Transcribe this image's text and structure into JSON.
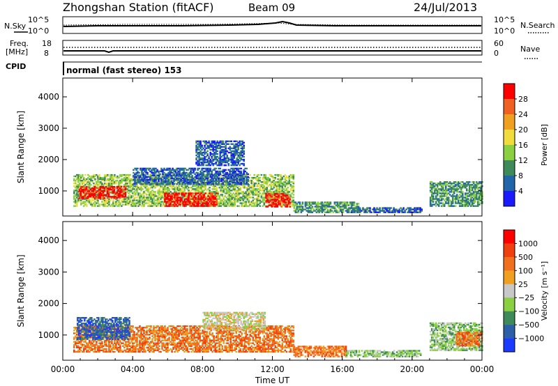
{
  "header": {
    "title": "Zhongshan Station (fitACF)",
    "beam": "Beam 09",
    "date": "24/Jul/2013"
  },
  "strip_labels": {
    "nsky": "N.Sky",
    "nsearch": "N.Search",
    "freq": "Freq.",
    "freq_unit": "[MHz]",
    "nave": "Nave",
    "cpid": "CPID",
    "cpid_text": "normal (fast stereo) 153"
  },
  "strip_ticks": {
    "noise_left_top": "10^5",
    "noise_left_bottom": "10^0",
    "noise_right_top": "10^5",
    "noise_right_bottom": "10^0",
    "freq_left_top": "18",
    "freq_left_bottom": "8",
    "nave_right_top": "60",
    "nave_right_bottom": "0"
  },
  "chart_data": [
    {
      "type": "heatmap",
      "panel": "power",
      "ylabel": "Slant Range [km]",
      "ylim": [
        200,
        4600
      ],
      "y_ticks": [
        "1000",
        "2000",
        "3000",
        "4000"
      ],
      "x_ticks": [
        "00:00",
        "04:00",
        "08:00",
        "12:00",
        "16:00",
        "20:00",
        "00:00"
      ],
      "colorbar": {
        "label": "Power [dB]",
        "tick_labels": [
          "4",
          "8",
          "12",
          "16",
          "20",
          "24",
          "28"
        ],
        "colors": [
          "#1a1aff",
          "#2266aa",
          "#3e8a5a",
          "#8ad042",
          "#f0dc3c",
          "#f0a020",
          "#f06020",
          "#ff0000"
        ]
      },
      "regions": [
        {
          "t0": 0.6,
          "t1": 13.2,
          "r0": 500,
          "r1": 1500,
          "level": 3
        },
        {
          "t0": 0.9,
          "t1": 3.6,
          "r0": 750,
          "r1": 1150,
          "level": 7
        },
        {
          "t0": 5.8,
          "t1": 8.8,
          "r0": 500,
          "r1": 950,
          "level": 7
        },
        {
          "t0": 11.6,
          "t1": 13.0,
          "r0": 480,
          "r1": 900,
          "level": 7
        },
        {
          "t0": 4.0,
          "t1": 10.6,
          "r0": 1200,
          "r1": 1700,
          "level": 1
        },
        {
          "t0": 7.6,
          "t1": 10.4,
          "r0": 1800,
          "r1": 2600,
          "level": 1
        },
        {
          "t0": 13.2,
          "t1": 17.0,
          "r0": 300,
          "r1": 650,
          "level": 2
        },
        {
          "t0": 16.5,
          "t1": 20.5,
          "r0": 300,
          "r1": 450,
          "level": 1
        },
        {
          "t0": 21.0,
          "t1": 24.0,
          "r0": 500,
          "r1": 1300,
          "level": 2
        }
      ]
    },
    {
      "type": "heatmap",
      "panel": "velocity",
      "ylabel": "Slant Range [km]",
      "ylim": [
        200,
        4600
      ],
      "y_ticks": [
        "1000",
        "2000",
        "3000",
        "4000"
      ],
      "x_ticks": [
        "00:00",
        "04:00",
        "08:00",
        "12:00",
        "16:00",
        "20:00",
        "00:00"
      ],
      "xlabel": "Time UT",
      "colorbar": {
        "label": "Velocity [m s⁻¹]",
        "tick_labels": [
          "1000",
          "500",
          "100",
          "25",
          "−25",
          "−100",
          "−500",
          "−1000"
        ],
        "colors": [
          "#1a3aff",
          "#2d5fa8",
          "#3e8a5a",
          "#8ad042",
          "#c8c8c8",
          "#f0a020",
          "#f07020",
          "#f04010",
          "#ff0000"
        ]
      },
      "regions": [
        {
          "t0": 0.6,
          "t1": 13.2,
          "r0": 450,
          "r1": 1300,
          "level": 6
        },
        {
          "t0": 0.8,
          "t1": 3.8,
          "r0": 850,
          "r1": 1550,
          "level": 1
        },
        {
          "t0": 8.0,
          "t1": 11.6,
          "r0": 1150,
          "r1": 1700,
          "level": 4
        },
        {
          "t0": 13.2,
          "t1": 16.2,
          "r0": 300,
          "r1": 650,
          "level": 6
        },
        {
          "t0": 16.2,
          "t1": 20.5,
          "r0": 300,
          "r1": 500,
          "level": 3
        },
        {
          "t0": 21.0,
          "t1": 24.0,
          "r0": 500,
          "r1": 1400,
          "level": 3
        },
        {
          "t0": 22.5,
          "t1": 24.0,
          "r0": 650,
          "r1": 1100,
          "level": 6
        }
      ]
    }
  ]
}
